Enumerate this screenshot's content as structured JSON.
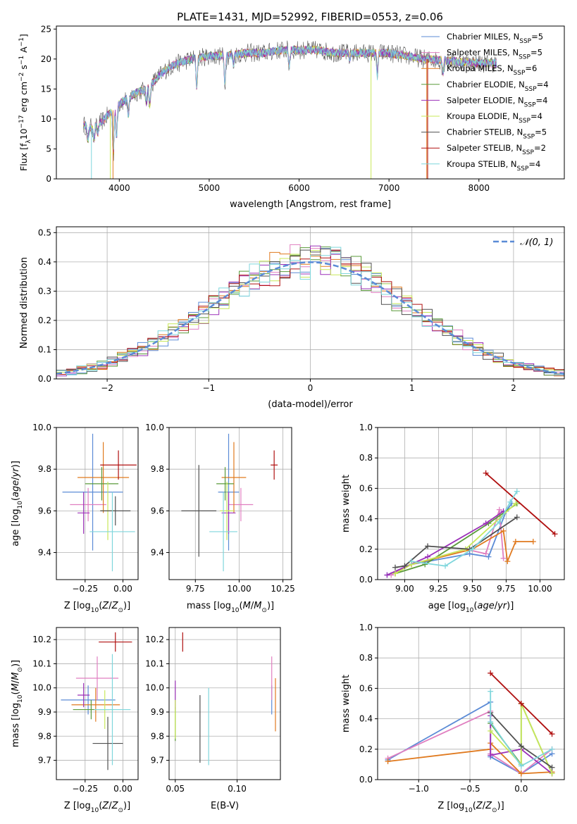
{
  "figure": {
    "title": "PLATE=1431, MJD=52992, FIBERID=0553, z=0.06"
  },
  "series_colors": {
    "Chabrier MILES": "#5b8bd6",
    "Salpeter MILES": "#e07fc0",
    "Kroupa MILES": "#e07a1f",
    "Chabrier ELODIE": "#5a9a3a",
    "Salpeter ELODIE": "#9b30b8",
    "Kroupa ELODIE": "#c8e85a",
    "Chabrier STELIB": "#505050",
    "Salpeter STELIB": "#b01010",
    "Kroupa STELIB": "#7fd6dc"
  },
  "chart_data": [
    {
      "id": "spectrum",
      "type": "line",
      "xlabel": "wavelength [Angstrom, rest frame]",
      "ylabel": "Flux [f_λ 10^-17 erg cm^-2 s^-1 A^-1]",
      "xlim": [
        3300,
        8950
      ],
      "ylim": [
        0,
        25.5
      ],
      "xticks": [
        4000,
        5000,
        6000,
        7000,
        8000
      ],
      "yticks": [
        0,
        5,
        10,
        15,
        20,
        25
      ],
      "legend_location": "right",
      "legend": [
        {
          "label": "Chabrier MILES, N",
          "sub": "SSP",
          "tail": "=5",
          "color": "#5b8bd6"
        },
        {
          "label": "Salpeter MILES, N",
          "sub": "SSP",
          "tail": "=5",
          "color": "#e07fc0"
        },
        {
          "label": "Kroupa MILES, N",
          "sub": "SSP",
          "tail": "=6",
          "color": "#e07a1f"
        },
        {
          "label": "Chabrier ELODIE, N",
          "sub": "SSP",
          "tail": "=4",
          "color": "#5a9a3a"
        },
        {
          "label": "Salpeter ELODIE, N",
          "sub": "SSP",
          "tail": "=4",
          "color": "#9b30b8"
        },
        {
          "label": "Kroupa ELODIE, N",
          "sub": "SSP",
          "tail": "=4",
          "color": "#c8e85a"
        },
        {
          "label": "Chabrier STELIB, N",
          "sub": "SSP",
          "tail": "=5",
          "color": "#505050"
        },
        {
          "label": "Salpeter STELIB, N",
          "sub": "SSP",
          "tail": "=2",
          "color": "#b01010"
        },
        {
          "label": "Kroupa STELIB, N",
          "sub": "SSP",
          "tail": "=4",
          "color": "#7fd6dc"
        }
      ],
      "continuum": [
        [
          3600,
          9
        ],
        [
          3700,
          8.5
        ],
        [
          3800,
          9.5
        ],
        [
          3900,
          11
        ],
        [
          4000,
          12.5
        ],
        [
          4100,
          13.5
        ],
        [
          4200,
          14.5
        ],
        [
          4300,
          15
        ],
        [
          4400,
          16.5
        ],
        [
          4500,
          18
        ],
        [
          4600,
          19
        ],
        [
          4700,
          19.5
        ],
        [
          4800,
          20
        ],
        [
          5000,
          20.5
        ],
        [
          5200,
          20.5
        ],
        [
          5400,
          21
        ],
        [
          5600,
          21
        ],
        [
          5800,
          21.5
        ],
        [
          6000,
          21.5
        ],
        [
          6200,
          21.5
        ],
        [
          6400,
          21
        ],
        [
          6600,
          21
        ],
        [
          6800,
          21
        ],
        [
          7000,
          21
        ],
        [
          7200,
          20.5
        ],
        [
          7400,
          20
        ],
        [
          7600,
          19.8
        ],
        [
          7800,
          19.5
        ],
        [
          8000,
          19.3
        ],
        [
          8200,
          19.3
        ]
      ],
      "dips": [
        [
          3650,
          6
        ],
        [
          3720,
          6.5
        ],
        [
          3760,
          7.5
        ],
        [
          3934,
          3.5
        ],
        [
          3969,
          6.5
        ],
        [
          4100,
          10
        ],
        [
          4300,
          12.5
        ],
        [
          4340,
          12
        ],
        [
          4861,
          15
        ],
        [
          5175,
          15.5
        ],
        [
          5270,
          19
        ],
        [
          5890,
          18.5
        ],
        [
          6563,
          20
        ],
        [
          6870,
          17
        ],
        [
          7600,
          17.5
        ]
      ],
      "spikes": [
        [
          3900,
          0,
          "#c8e85a"
        ],
        [
          3930,
          0,
          "#e07a1f"
        ],
        [
          3690,
          0,
          "#7fd6dc"
        ],
        [
          6800,
          0,
          "#c8e85a"
        ],
        [
          7420,
          0,
          "#e07a1f"
        ],
        [
          7430,
          0,
          "#b01010"
        ]
      ]
    },
    {
      "id": "residuals",
      "type": "histogram",
      "xlabel": "(data-model)/error",
      "ylabel": "Normed distribution",
      "xlim": [
        -2.5,
        2.5
      ],
      "ylim": [
        0,
        0.52
      ],
      "xticks": [
        -2,
        -1,
        0,
        1,
        2
      ],
      "yticks": [
        0.0,
        0.1,
        0.2,
        0.3,
        0.4,
        0.5
      ],
      "bin_width": 0.1,
      "legend": "𝒩(0, 1)",
      "legend_location": "top-right",
      "normal_curve_color": "#5b8bd6"
    },
    {
      "id": "age_vs_Z",
      "type": "errorbar",
      "xlabel": "Z [log10(Z/Z⊙)]",
      "ylabel": "age [log10(age/yr)]",
      "xlim": [
        -0.44,
        0.1
      ],
      "ylim": [
        9.27,
        10.0
      ],
      "xticks": [
        -0.25,
        0.0
      ],
      "yticks": [
        9.4,
        9.6,
        9.8,
        10.0
      ],
      "points": [
        {
          "series": "Chabrier MILES",
          "x": -0.2,
          "xerr": 0.2,
          "y": 9.69,
          "yerr": 0.28
        },
        {
          "series": "Salpeter MILES",
          "x": -0.23,
          "xerr": 0.12,
          "y": 9.63,
          "yerr": 0.08
        },
        {
          "series": "Kroupa MILES",
          "x": -0.13,
          "xerr": 0.17,
          "y": 9.76,
          "yerr": 0.17
        },
        {
          "series": "Chabrier ELODIE",
          "x": -0.14,
          "xerr": 0.11,
          "y": 9.73,
          "yerr": 0.08
        },
        {
          "series": "Salpeter ELODIE",
          "x": -0.26,
          "xerr": 0.04,
          "y": 9.59,
          "yerr": 0.1
        },
        {
          "series": "Kroupa ELODIE",
          "x": -0.1,
          "xerr": 0.05,
          "y": 9.6,
          "yerr": 0.14
        },
        {
          "series": "Chabrier STELIB",
          "x": -0.05,
          "xerr": 0.1,
          "y": 9.6,
          "yerr": 0.07
        },
        {
          "series": "Salpeter STELIB",
          "x": -0.03,
          "xerr": 0.12,
          "y": 9.82,
          "yerr": 0.07
        },
        {
          "series": "Kroupa STELIB",
          "x": -0.07,
          "xerr": 0.15,
          "y": 9.5,
          "yerr": 0.19
        }
      ]
    },
    {
      "id": "age_vs_mass",
      "type": "errorbar",
      "xlabel": "mass [log10(M/M⊙)]",
      "xlim": [
        9.6,
        10.3
      ],
      "ylim": [
        9.27,
        10.0
      ],
      "xticks": [
        9.75,
        10.0,
        10.25
      ],
      "yticks": [
        9.4,
        9.6,
        9.8,
        10.0
      ],
      "points": [
        {
          "series": "Chabrier MILES",
          "x": 9.94,
          "xerr": 0.06,
          "y": 9.69,
          "yerr": 0.28
        },
        {
          "series": "Salpeter MILES",
          "x": 10.01,
          "xerr": 0.07,
          "y": 9.63,
          "yerr": 0.08
        },
        {
          "series": "Kroupa MILES",
          "x": 9.97,
          "xerr": 0.07,
          "y": 9.76,
          "yerr": 0.17
        },
        {
          "series": "Chabrier ELODIE",
          "x": 9.92,
          "xerr": 0.05,
          "y": 9.73,
          "yerr": 0.08
        },
        {
          "series": "Salpeter ELODIE",
          "x": 9.94,
          "xerr": 0.04,
          "y": 9.59,
          "yerr": 0.1
        },
        {
          "series": "Kroupa ELODIE",
          "x": 9.93,
          "xerr": 0.04,
          "y": 9.6,
          "yerr": 0.14
        },
        {
          "series": "Chabrier STELIB",
          "x": 9.77,
          "xerr": 0.1,
          "y": 9.6,
          "yerr": 0.22
        },
        {
          "series": "Salpeter STELIB",
          "x": 10.2,
          "xerr": 0.02,
          "y": 9.82,
          "yerr": 0.07
        },
        {
          "series": "Kroupa STELIB",
          "x": 9.91,
          "xerr": 0.08,
          "y": 9.5,
          "yerr": 0.19
        }
      ]
    },
    {
      "id": "massweight_vs_age",
      "type": "line",
      "xlabel": "age [log10(age/yr)]",
      "ylabel": "mass weight",
      "xlim": [
        8.8,
        10.18
      ],
      "ylim": [
        0,
        1.0
      ],
      "xticks": [
        9.0,
        9.25,
        9.5,
        9.75,
        10.0
      ],
      "yticks": [
        0.0,
        0.2,
        0.4,
        0.6,
        0.8,
        1.0
      ],
      "series": [
        {
          "name": "Chabrier MILES",
          "x": [
            8.87,
            9.05,
            9.48,
            9.62,
            9.75,
            9.79
          ],
          "y": [
            0.03,
            0.1,
            0.17,
            0.15,
            0.45,
            0.5
          ]
        },
        {
          "name": "Salpeter MILES",
          "x": [
            8.9,
            9.05,
            9.45,
            9.6,
            9.7,
            9.73
          ],
          "y": [
            0.03,
            0.1,
            0.2,
            0.17,
            0.46,
            0.14
          ]
        },
        {
          "name": "Kroupa MILES",
          "x": [
            8.93,
            9.05,
            9.5,
            9.73,
            9.76,
            9.82,
            9.95
          ],
          "y": [
            0.04,
            0.1,
            0.2,
            0.32,
            0.12,
            0.25,
            0.25
          ]
        },
        {
          "name": "Chabrier ELODIE",
          "x": [
            8.93,
            9.15,
            9.62,
            9.83
          ],
          "y": [
            0.04,
            0.1,
            0.37,
            0.5
          ]
        },
        {
          "name": "Salpeter ELODIE",
          "x": [
            8.87,
            9.17,
            9.6,
            9.73
          ],
          "y": [
            0.03,
            0.15,
            0.37,
            0.45
          ]
        },
        {
          "name": "Kroupa ELODIE",
          "x": [
            8.93,
            9.05,
            9.45,
            9.82
          ],
          "y": [
            0.04,
            0.1,
            0.2,
            0.5
          ]
        },
        {
          "name": "Chabrier STELIB",
          "x": [
            8.93,
            9.0,
            9.17,
            9.48,
            9.83
          ],
          "y": [
            0.08,
            0.09,
            0.22,
            0.2,
            0.41
          ]
        },
        {
          "name": "Salpeter STELIB",
          "x": [
            9.6,
            10.11
          ],
          "y": [
            0.7,
            0.3
          ]
        },
        {
          "name": "Kroupa STELIB",
          "x": [
            9.05,
            9.3,
            9.5,
            9.7,
            9.78,
            9.83
          ],
          "y": [
            0.12,
            0.09,
            0.2,
            0.38,
            0.51,
            0.58
          ]
        }
      ]
    },
    {
      "id": "mass_vs_Z",
      "type": "errorbar",
      "xlabel": "Z [log10(Z/Z⊙)]",
      "ylabel": "mass [log10(M/M⊙)]",
      "xlim": [
        -0.44,
        0.1
      ],
      "ylim": [
        9.62,
        10.25
      ],
      "xticks": [
        -0.25,
        0.0
      ],
      "yticks": [
        9.7,
        9.8,
        9.9,
        10.0,
        10.1,
        10.2
      ],
      "points": [
        {
          "series": "Chabrier MILES",
          "x": -0.23,
          "xerr": 0.18,
          "y": 9.95,
          "yerr": 0.06
        },
        {
          "series": "Salpeter MILES",
          "x": -0.17,
          "xerr": 0.14,
          "y": 10.04,
          "yerr": 0.09
        },
        {
          "series": "Kroupa MILES",
          "x": -0.18,
          "xerr": 0.16,
          "y": 9.93,
          "yerr": 0.07
        },
        {
          "series": "Chabrier ELODIE",
          "x": -0.21,
          "xerr": 0.12,
          "y": 9.91,
          "yerr": 0.04
        },
        {
          "series": "Salpeter ELODIE",
          "x": -0.26,
          "xerr": 0.04,
          "y": 9.97,
          "yerr": 0.05
        },
        {
          "series": "Kroupa ELODIE",
          "x": -0.12,
          "xerr": 0.06,
          "y": 9.91,
          "yerr": 0.08
        },
        {
          "series": "Chabrier STELIB",
          "x": -0.1,
          "xerr": 0.1,
          "y": 9.77,
          "yerr": 0.11
        },
        {
          "series": "Salpeter STELIB",
          "x": -0.05,
          "xerr": 0.11,
          "y": 10.19,
          "yerr": 0.04
        },
        {
          "series": "Kroupa STELIB",
          "x": -0.07,
          "xerr": 0.12,
          "y": 9.91,
          "yerr": 0.23
        }
      ]
    },
    {
      "id": "mass_vs_EBV",
      "type": "errorbar",
      "xlabel": "E(B-V)",
      "xlim": [
        0.045,
        0.135
      ],
      "ylim": [
        9.62,
        10.25
      ],
      "xticks": [
        0.05,
        0.1
      ],
      "yticks": [
        9.7,
        9.8,
        9.9,
        10.0,
        10.1,
        10.2
      ],
      "points": [
        {
          "series": "Chabrier MILES",
          "x": 0.128,
          "xerr": 0,
          "y": 9.95,
          "yerr": 0.06
        },
        {
          "series": "Salpeter MILES",
          "x": 0.128,
          "xerr": 0,
          "y": 10.04,
          "yerr": 0.09
        },
        {
          "series": "Kroupa MILES",
          "x": 0.131,
          "xerr": 0,
          "y": 9.93,
          "yerr": 0.11
        },
        {
          "series": "Chabrier ELODIE",
          "x": 0.05,
          "xerr": 0,
          "y": 9.85,
          "yerr": 0.07
        },
        {
          "series": "Salpeter ELODIE",
          "x": 0.05,
          "xerr": 0,
          "y": 9.97,
          "yerr": 0.06
        },
        {
          "series": "Kroupa ELODIE",
          "x": 0.05,
          "xerr": 0,
          "y": 9.87,
          "yerr": 0.08
        },
        {
          "series": "Chabrier STELIB",
          "x": 0.07,
          "xerr": 0,
          "y": 9.83,
          "yerr": 0.14
        },
        {
          "series": "Salpeter STELIB",
          "x": 0.056,
          "xerr": 0,
          "y": 10.19,
          "yerr": 0.04
        },
        {
          "series": "Kroupa STELIB",
          "x": 0.077,
          "xerr": 0,
          "y": 9.84,
          "yerr": 0.16
        }
      ]
    },
    {
      "id": "massweight_vs_Z",
      "type": "line",
      "xlabel": "Z [log10(Z/Z⊙)]",
      "ylabel": "mass weight",
      "xlim": [
        -1.4,
        0.42
      ],
      "ylim": [
        0,
        1.0
      ],
      "xticks": [
        -1.0,
        -0.5,
        0.0
      ],
      "yticks": [
        0.0,
        0.2,
        0.4,
        0.6,
        0.8,
        1.0
      ],
      "series": [
        {
          "name": "Chabrier MILES",
          "x": [
            -1.3,
            -0.3,
            -0.3,
            0.0,
            0.3
          ],
          "y": [
            0.13,
            0.51,
            0.15,
            0.04,
            0.17
          ]
        },
        {
          "name": "Salpeter MILES",
          "x": [
            -1.3,
            -0.3,
            -0.3,
            0.0,
            0.3
          ],
          "y": [
            0.14,
            0.45,
            0.17,
            0.04,
            0.2
          ]
        },
        {
          "name": "Kroupa MILES",
          "x": [
            -1.3,
            -0.3,
            -0.3,
            0.0,
            0.0,
            0.3
          ],
          "y": [
            0.12,
            0.2,
            0.24,
            0.04,
            0.04,
            0.05
          ]
        },
        {
          "name": "Chabrier ELODIE",
          "x": [
            -0.3,
            0.0,
            0.0,
            0.3
          ],
          "y": [
            0.37,
            0.1,
            0.5,
            0.04
          ]
        },
        {
          "name": "Salpeter ELODIE",
          "x": [
            -0.3,
            -0.3,
            0.0,
            0.3
          ],
          "y": [
            0.42,
            0.16,
            0.2,
            0.04
          ]
        },
        {
          "name": "Kroupa ELODIE",
          "x": [
            -0.3,
            0.0,
            0.0,
            0.3
          ],
          "y": [
            0.32,
            0.1,
            0.5,
            0.04
          ]
        },
        {
          "name": "Chabrier STELIB",
          "x": [
            -0.3,
            0.0,
            0.3
          ],
          "y": [
            0.44,
            0.22,
            0.08
          ]
        },
        {
          "name": "Salpeter STELIB",
          "x": [
            -0.3,
            0.0,
            0.3
          ],
          "y": [
            0.7,
            0.5,
            0.3
          ]
        },
        {
          "name": "Kroupa STELIB",
          "x": [
            -0.3,
            -0.3,
            0.0,
            0.3
          ],
          "y": [
            0.58,
            0.38,
            0.09,
            0.2
          ]
        }
      ]
    }
  ]
}
